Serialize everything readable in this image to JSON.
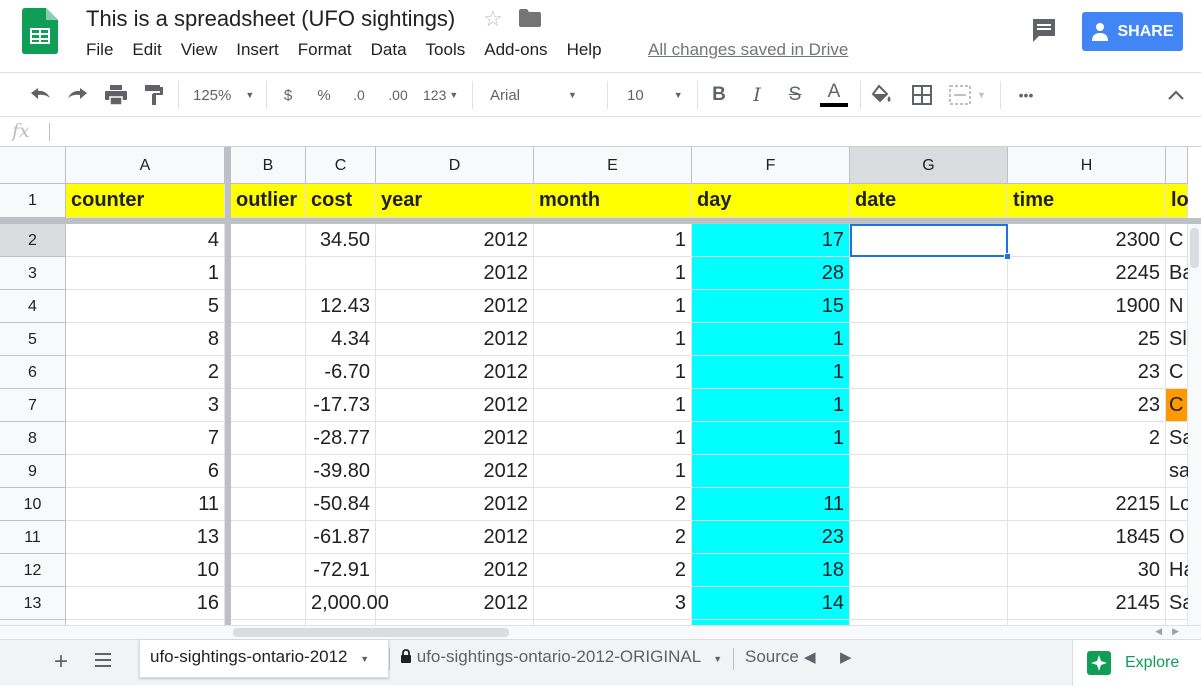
{
  "app": {
    "title": "This is a spreadsheet (UFO sightings)",
    "save_status": "All changes saved in Drive",
    "share_label": "SHARE",
    "menu": [
      "File",
      "Edit",
      "View",
      "Insert",
      "Format",
      "Data",
      "Tools",
      "Add-ons",
      "Help"
    ]
  },
  "toolbar": {
    "zoom": "125%",
    "currency": "$",
    "percent": "%",
    "decrease_decimals": ".0",
    "increase_decimals": ".00",
    "more_formats": "123",
    "font": "Arial",
    "font_size": "10",
    "bold": "B",
    "italic": "I",
    "strikethrough": "S",
    "text_color": "A",
    "more": "•••"
  },
  "formula_bar": {
    "label": "fx",
    "value": ""
  },
  "grid": {
    "columns": [
      "A",
      "B",
      "C",
      "D",
      "E",
      "F",
      "G",
      "H"
    ],
    "rows": [
      "1",
      "2",
      "3",
      "4",
      "5",
      "6",
      "7",
      "8",
      "9",
      "10",
      "11",
      "12",
      "13"
    ],
    "selected_cell": "G2",
    "headers": {
      "A": "counter",
      "B": "outlier",
      "C": "cost",
      "D": "year",
      "E": "month",
      "F": "day",
      "G": "date",
      "H": "time",
      "I": "lo"
    },
    "data": [
      {
        "A": "4",
        "B": "",
        "C": "34.50",
        "D": "2012",
        "E": "1",
        "F": "17",
        "G": "",
        "H": "2300",
        "I": "C"
      },
      {
        "A": "1",
        "B": "",
        "C": "",
        "D": "2012",
        "E": "1",
        "F": "28",
        "G": "",
        "H": "2245",
        "I": "Ba"
      },
      {
        "A": "5",
        "B": "",
        "C": "12.43",
        "D": "2012",
        "E": "1",
        "F": "15",
        "G": "",
        "H": "1900",
        "I": "N"
      },
      {
        "A": "8",
        "B": "",
        "C": "4.34",
        "D": "2012",
        "E": "1",
        "F": "1",
        "G": "",
        "H": "25",
        "I": "Sl"
      },
      {
        "A": "2",
        "B": "",
        "C": "-6.70",
        "D": "2012",
        "E": "1",
        "F": "1",
        "G": "",
        "H": "23",
        "I": "C"
      },
      {
        "A": "3",
        "B": "",
        "C": "-17.73",
        "D": "2012",
        "E": "1",
        "F": "1",
        "G": "",
        "H": "23",
        "I": "C"
      },
      {
        "A": "7",
        "B": "",
        "C": "-28.77",
        "D": "2012",
        "E": "1",
        "F": "1",
        "G": "",
        "H": "2",
        "I": "Sa"
      },
      {
        "A": "6",
        "B": "",
        "C": "-39.80",
        "D": "2012",
        "E": "1",
        "F": "",
        "G": "",
        "H": "",
        "I": "sa"
      },
      {
        "A": "11",
        "B": "",
        "C": "-50.84",
        "D": "2012",
        "E": "2",
        "F": "11",
        "G": "",
        "H": "2215",
        "I": "Lo"
      },
      {
        "A": "13",
        "B": "",
        "C": "-61.87",
        "D": "2012",
        "E": "2",
        "F": "23",
        "G": "",
        "H": "1845",
        "I": "O"
      },
      {
        "A": "10",
        "B": "",
        "C": "-72.91",
        "D": "2012",
        "E": "2",
        "F": "18",
        "G": "",
        "H": "30",
        "I": "Ha"
      },
      {
        "A": "16",
        "B": "",
        "C": "2,000.00",
        "D": "2012",
        "E": "3",
        "F": "14",
        "G": "",
        "H": "2145",
        "I": "Sa"
      }
    ],
    "colors": {
      "header_fill": "#ffff00",
      "day_fill": "#00ffff",
      "highlight_fill": "#ff9900",
      "selection": "#1a73e8"
    },
    "highlighted_cell": "I7"
  },
  "sheets": {
    "tabs": [
      {
        "label": "ufo-sightings-ontario-2012",
        "active": true
      },
      {
        "label": "ufo-sightings-ontario-2012-ORIGINAL",
        "locked": true
      },
      {
        "label": "Source"
      }
    ],
    "explore_label": "Explore"
  }
}
